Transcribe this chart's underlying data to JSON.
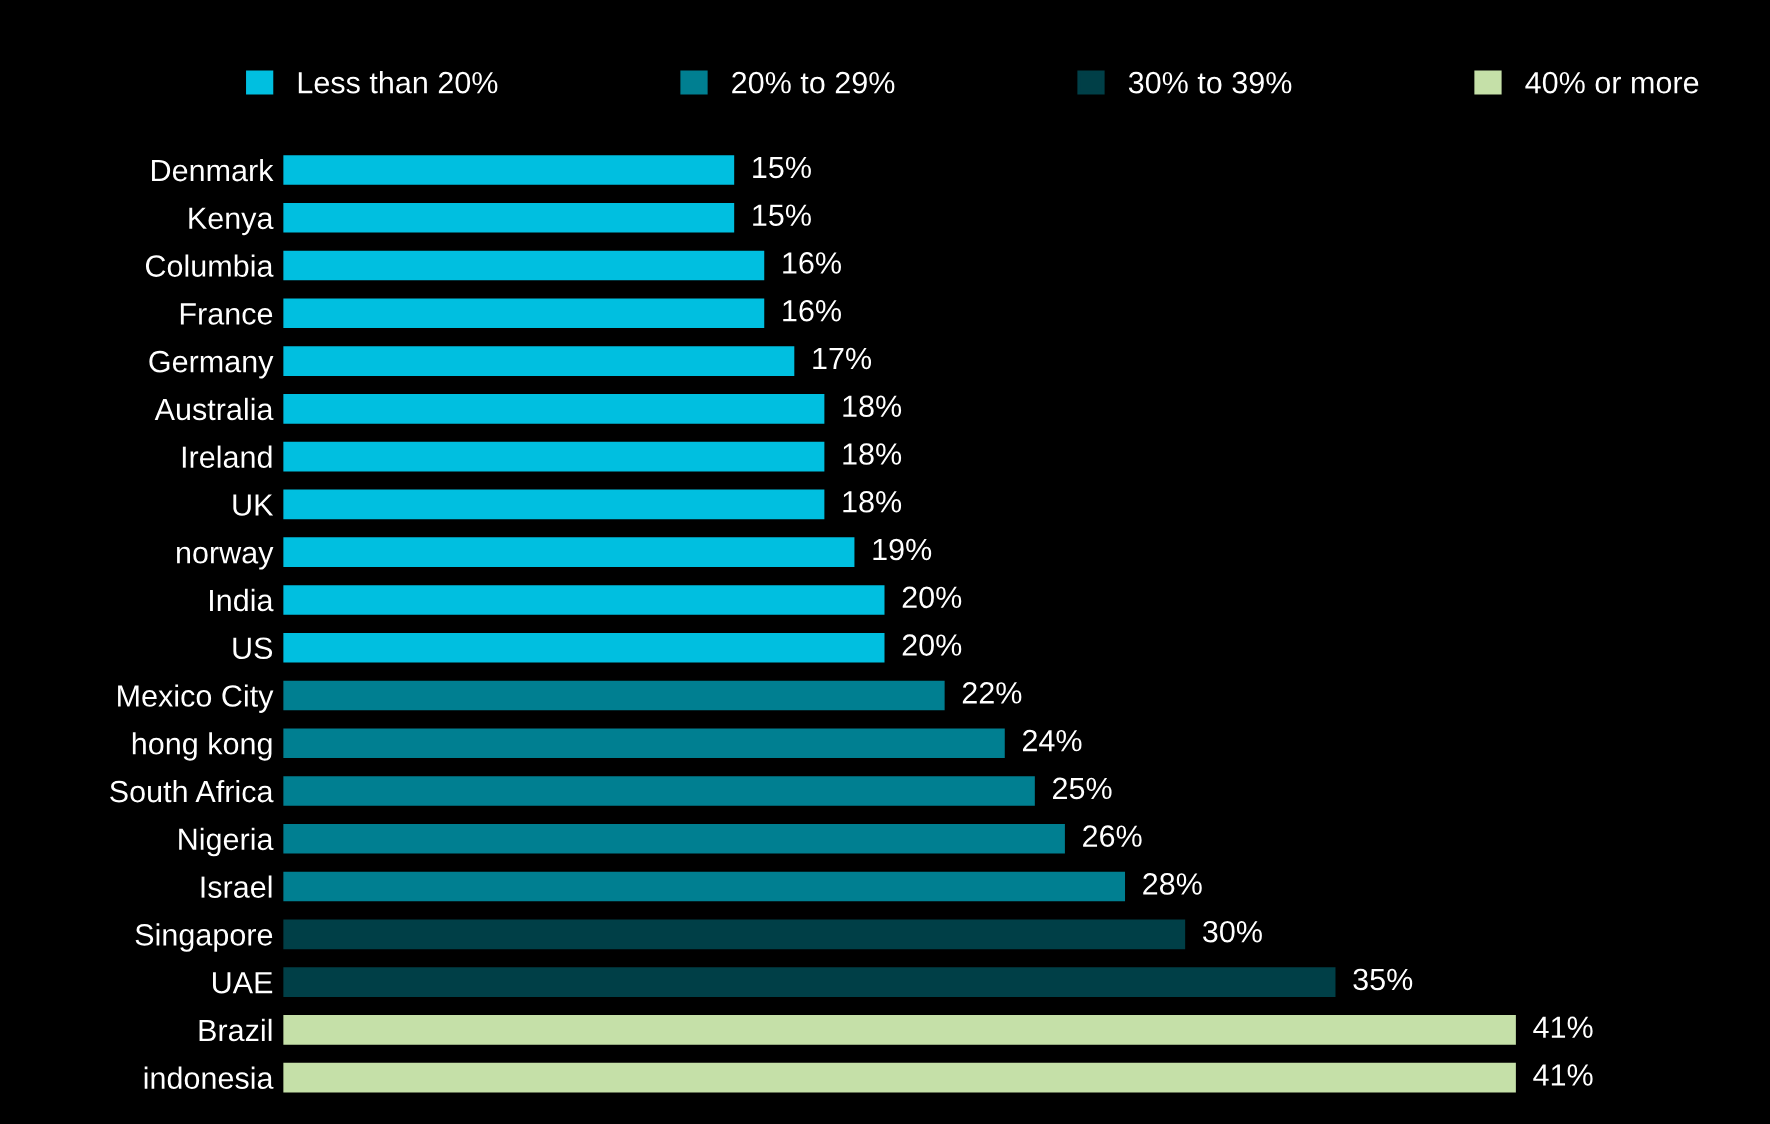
{
  "chart_data": {
    "type": "bar",
    "orientation": "horizontal",
    "categories": [
      "Denmark",
      "Kenya",
      "Columbia",
      "France",
      "Germany",
      "Australia",
      "Ireland",
      "UK",
      "norway",
      "India",
      "US",
      "Mexico City",
      "hong kong",
      "South Africa",
      "Nigeria",
      "Israel",
      "Singapore",
      "UAE",
      "Brazil",
      "indonesia"
    ],
    "series": [
      {
        "name": "Less than 20%",
        "color": "#00bfe0",
        "values": [
          15,
          15,
          16,
          16,
          17,
          18,
          18,
          18,
          19,
          20,
          20,
          null,
          null,
          null,
          null,
          null,
          null,
          null,
          null,
          null
        ],
        "value_labels": [
          "15%",
          "15%",
          "16%",
          "16%",
          "17%",
          "18%",
          "18%",
          "18%",
          "19%",
          "20%",
          "20%",
          null,
          null,
          null,
          null,
          null,
          null,
          null,
          null,
          null
        ]
      },
      {
        "name": "20% to 29%",
        "color": "#007f91",
        "values": [
          null,
          null,
          null,
          null,
          null,
          null,
          null,
          null,
          null,
          null,
          null,
          22,
          24,
          25,
          26,
          28,
          null,
          null,
          null,
          null
        ],
        "value_labels": [
          null,
          null,
          null,
          null,
          null,
          null,
          null,
          null,
          null,
          null,
          null,
          "22%",
          "24%",
          "25%",
          "26%",
          "28%",
          null,
          null,
          null,
          null
        ]
      },
      {
        "name": "30% to 39%",
        "color": "#003f47",
        "values": [
          null,
          null,
          null,
          null,
          null,
          null,
          null,
          null,
          null,
          null,
          null,
          null,
          null,
          null,
          null,
          null,
          30,
          35,
          null,
          null
        ],
        "value_labels": [
          null,
          null,
          null,
          null,
          null,
          null,
          null,
          null,
          null,
          null,
          null,
          null,
          null,
          null,
          null,
          null,
          "30%",
          "35%",
          null,
          null
        ]
      },
      {
        "name": "40% or more",
        "color": "#c5e0a8",
        "values": [
          null,
          null,
          null,
          null,
          null,
          null,
          null,
          null,
          null,
          null,
          null,
          null,
          null,
          null,
          null,
          null,
          null,
          null,
          41,
          41
        ],
        "value_labels": [
          null,
          null,
          null,
          null,
          null,
          null,
          null,
          null,
          null,
          null,
          null,
          null,
          null,
          null,
          null,
          null,
          null,
          null,
          "41%",
          "41%"
        ]
      }
    ],
    "legend": "top",
    "grid": false,
    "tick_labels": "y"
  }
}
